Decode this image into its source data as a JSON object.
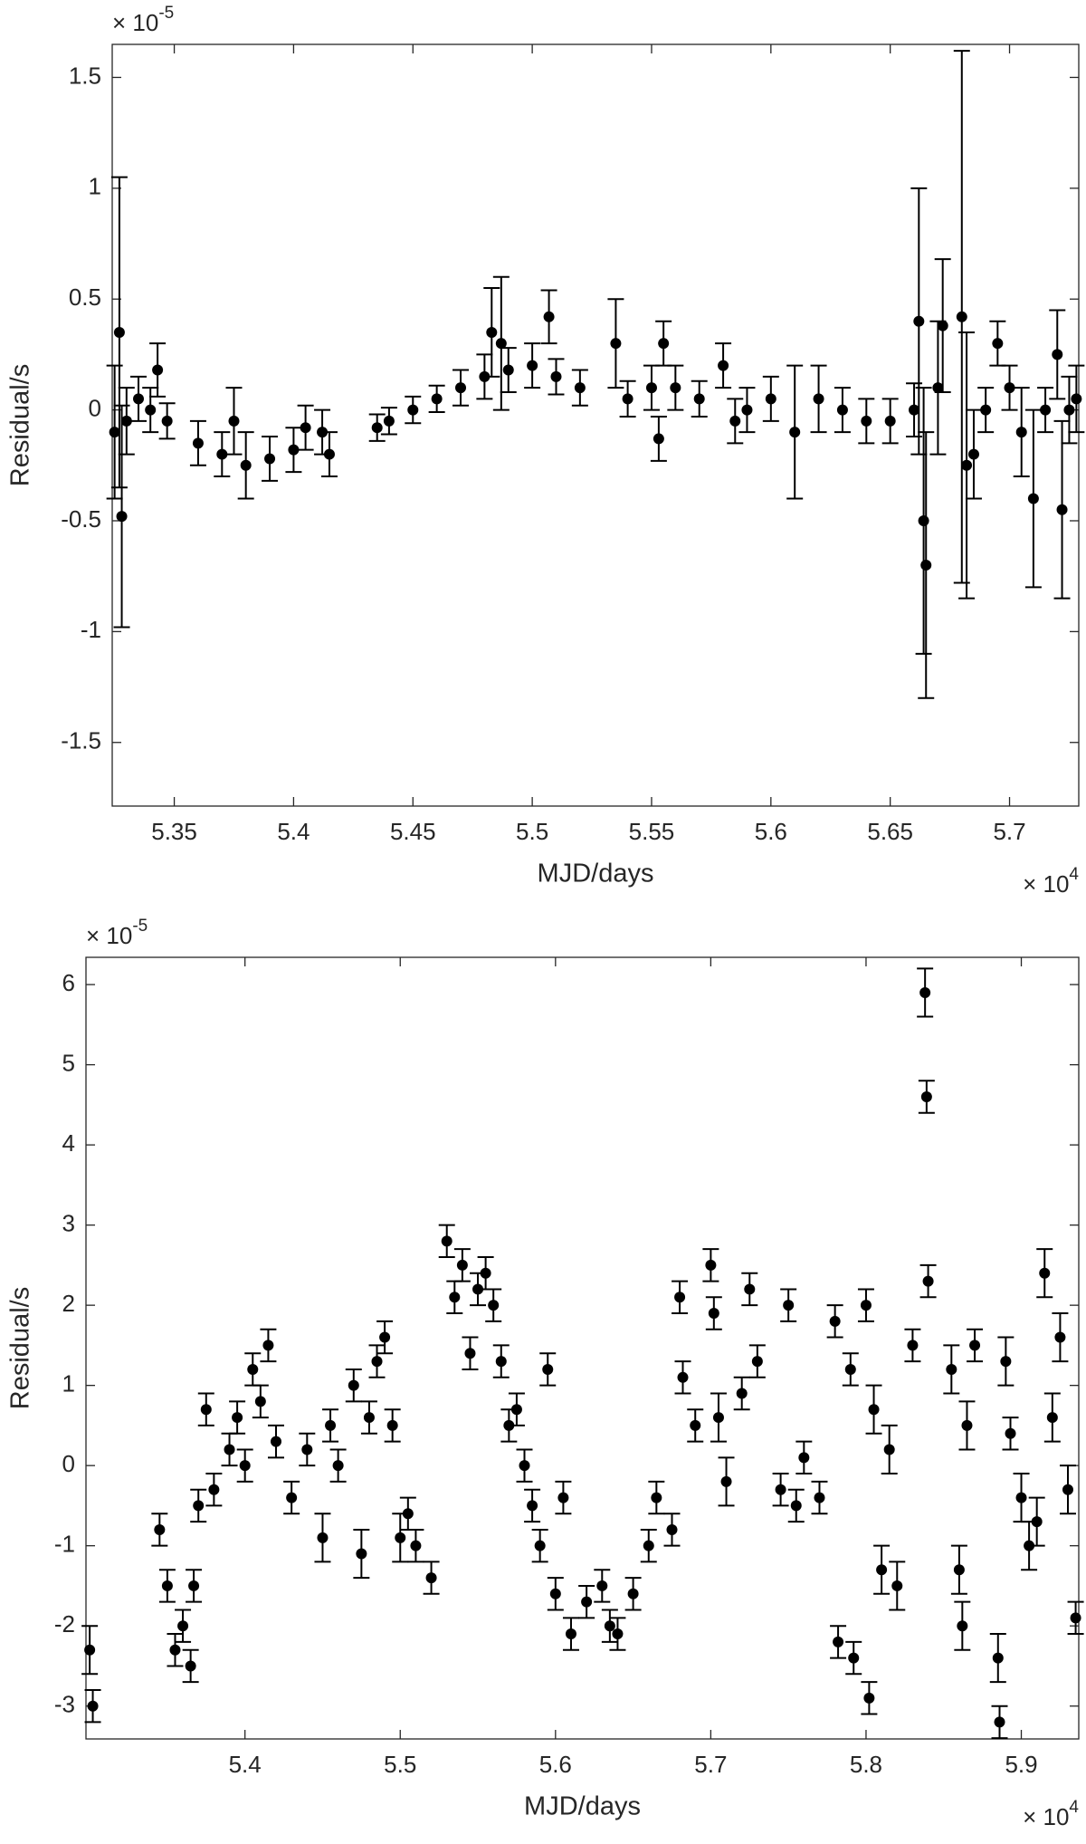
{
  "chart_data": [
    {
      "type": "scatter",
      "x_label": "MJD/days",
      "y_label": "Residual/s",
      "x_multiplier": "× 10",
      "x_exponent": "4",
      "y_multiplier": "× 10",
      "y_exponent": "-5",
      "xlim": [
        5.324,
        5.729
      ],
      "ylim": [
        -1.787,
        1.649
      ],
      "xticks": [
        5.35,
        5.4,
        5.45,
        5.5,
        5.55,
        5.6,
        5.65,
        5.7
      ],
      "yticks": [
        -1.5,
        -1,
        -0.5,
        0,
        0.5,
        1,
        1.5
      ],
      "series": [
        {
          "color": "#000000",
          "x": [
            5.325,
            5.327,
            5.328,
            5.33,
            5.335,
            5.34,
            5.343,
            5.347,
            5.36,
            5.37,
            5.375,
            5.38,
            5.39,
            5.4,
            5.405,
            5.412,
            5.415,
            5.435,
            5.44,
            5.45,
            5.46,
            5.47,
            5.48,
            5.483,
            5.487,
            5.49,
            5.5,
            5.507,
            5.51,
            5.52,
            5.535,
            5.54,
            5.55,
            5.553,
            5.555,
            5.56,
            5.57,
            5.58,
            5.585,
            5.59,
            5.6,
            5.61,
            5.62,
            5.63,
            5.64,
            5.65,
            5.66,
            5.662,
            5.664,
            5.665,
            5.67,
            5.672,
            5.68,
            5.682,
            5.685,
            5.69,
            5.695,
            5.7,
            5.705,
            5.71,
            5.715,
            5.72,
            5.722,
            5.725,
            5.728
          ],
          "values": [
            -0.1,
            0.35,
            -0.48,
            -0.05,
            0.05,
            0,
            0.18,
            -0.05,
            -0.15,
            -0.2,
            -0.05,
            -0.25,
            -0.22,
            -0.18,
            -0.08,
            -0.1,
            -0.2,
            -0.08,
            -0.05,
            0,
            0.05,
            0.1,
            0.15,
            0.35,
            0.3,
            0.18,
            0.2,
            0.42,
            0.15,
            0.1,
            0.3,
            0.05,
            0.1,
            -0.13,
            0.3,
            0.1,
            0.05,
            0.2,
            -0.05,
            0,
            0.05,
            -0.1,
            0.05,
            0,
            -0.05,
            -0.05,
            0,
            0.4,
            -0.5,
            -0.7,
            0.1,
            0.38,
            0.42,
            -0.25,
            -0.2,
            0,
            0.3,
            0.1,
            -0.1,
            -0.4,
            0,
            0.25,
            -0.45,
            0,
            0.05
          ],
          "errors": [
            0.3,
            0.7,
            0.5,
            0.15,
            0.1,
            0.1,
            0.12,
            0.08,
            0.1,
            0.1,
            0.15,
            0.15,
            0.1,
            0.1,
            0.1,
            0.1,
            0.1,
            0.06,
            0.06,
            0.06,
            0.06,
            0.08,
            0.1,
            0.2,
            0.3,
            0.1,
            0.1,
            0.12,
            0.08,
            0.08,
            0.2,
            0.08,
            0.1,
            0.1,
            0.1,
            0.1,
            0.08,
            0.1,
            0.1,
            0.1,
            0.1,
            0.3,
            0.15,
            0.1,
            0.1,
            0.1,
            0.12,
            0.6,
            0.6,
            0.6,
            0.3,
            0.3,
            1.2,
            0.6,
            0.2,
            0.1,
            0.1,
            0.1,
            0.2,
            0.4,
            0.1,
            0.2,
            0.4,
            0.15,
            0.15
          ]
        }
      ]
    },
    {
      "type": "scatter",
      "x_label": "MJD/days",
      "y_label": "Residual/s",
      "x_multiplier": "× 10",
      "x_exponent": "4",
      "y_multiplier": "× 10",
      "y_exponent": "-5",
      "xlim": [
        5.2976,
        5.937
      ],
      "ylim": [
        -3.41,
        6.34
      ],
      "xticks": [
        5.4,
        5.5,
        5.6,
        5.7,
        5.8,
        5.9
      ],
      "yticks": [
        -3,
        -2,
        -1,
        0,
        1,
        2,
        3,
        4,
        5,
        6
      ],
      "series": [
        {
          "color": "#000000",
          "x": [
            5.3,
            5.302,
            5.345,
            5.35,
            5.355,
            5.36,
            5.365,
            5.367,
            5.37,
            5.375,
            5.38,
            5.39,
            5.395,
            5.4,
            5.405,
            5.41,
            5.415,
            5.42,
            5.43,
            5.44,
            5.45,
            5.455,
            5.46,
            5.47,
            5.475,
            5.48,
            5.485,
            5.49,
            5.495,
            5.5,
            5.505,
            5.51,
            5.52,
            5.53,
            5.535,
            5.54,
            5.545,
            5.55,
            5.555,
            5.56,
            5.565,
            5.57,
            5.575,
            5.58,
            5.585,
            5.59,
            5.595,
            5.6,
            5.605,
            5.61,
            5.62,
            5.63,
            5.635,
            5.64,
            5.65,
            5.66,
            5.665,
            5.675,
            5.68,
            5.682,
            5.69,
            5.7,
            5.702,
            5.705,
            5.71,
            5.72,
            5.725,
            5.73,
            5.745,
            5.75,
            5.755,
            5.76,
            5.77,
            5.78,
            5.782,
            5.79,
            5.792,
            5.8,
            5.802,
            5.805,
            5.81,
            5.815,
            5.82,
            5.83,
            5.838,
            5.839,
            5.84,
            5.855,
            5.86,
            5.862,
            5.865,
            5.87,
            5.885,
            5.886,
            5.89,
            5.893,
            5.9,
            5.905,
            5.91,
            5.915,
            5.92,
            5.925,
            5.93,
            5.935
          ],
          "values": [
            -2.3,
            -3,
            -0.8,
            -1.5,
            -2.3,
            -2,
            -2.5,
            -1.5,
            -0.5,
            0.7,
            -0.3,
            0.2,
            0.6,
            0,
            1.2,
            0.8,
            1.5,
            0.3,
            -0.4,
            0.2,
            -0.9,
            0.5,
            0,
            1,
            -1.1,
            0.6,
            1.3,
            1.6,
            0.5,
            -0.9,
            -0.6,
            -1,
            -1.4,
            2.8,
            2.1,
            2.5,
            1.4,
            2.2,
            2.4,
            2,
            1.3,
            0.5,
            0.7,
            0,
            -0.5,
            -1,
            1.2,
            -1.6,
            -0.4,
            -2.1,
            -1.7,
            -1.5,
            -2,
            -2.1,
            -1.6,
            -1,
            -0.4,
            -0.8,
            2.1,
            1.1,
            0.5,
            2.5,
            1.9,
            0.6,
            -0.2,
            0.9,
            2.2,
            1.3,
            -0.3,
            2,
            -0.5,
            0.1,
            -0.4,
            1.8,
            -2.2,
            1.2,
            -2.4,
            2,
            -2.9,
            0.7,
            -1.3,
            0.2,
            -1.5,
            1.5,
            5.9,
            4.6,
            2.3,
            1.2,
            -1.3,
            -2,
            0.5,
            1.5,
            -2.4,
            -3.2,
            1.3,
            0.4,
            -0.4,
            -1,
            -0.7,
            2.4,
            0.6,
            1.6,
            -0.3,
            -1.9
          ],
          "errors": [
            0.3,
            0.2,
            0.2,
            0.2,
            0.2,
            0.2,
            0.2,
            0.2,
            0.2,
            0.2,
            0.2,
            0.2,
            0.2,
            0.2,
            0.2,
            0.2,
            0.2,
            0.2,
            0.2,
            0.2,
            0.3,
            0.2,
            0.2,
            0.2,
            0.3,
            0.2,
            0.2,
            0.2,
            0.2,
            0.3,
            0.2,
            0.2,
            0.2,
            0.2,
            0.2,
            0.2,
            0.2,
            0.2,
            0.2,
            0.2,
            0.2,
            0.2,
            0.2,
            0.2,
            0.2,
            0.2,
            0.2,
            0.2,
            0.2,
            0.2,
            0.2,
            0.2,
            0.2,
            0.2,
            0.2,
            0.2,
            0.2,
            0.2,
            0.2,
            0.2,
            0.2,
            0.2,
            0.2,
            0.3,
            0.3,
            0.2,
            0.2,
            0.2,
            0.2,
            0.2,
            0.2,
            0.2,
            0.2,
            0.2,
            0.2,
            0.2,
            0.2,
            0.2,
            0.2,
            0.3,
            0.3,
            0.3,
            0.3,
            0.2,
            0.3,
            0.2,
            0.2,
            0.3,
            0.3,
            0.3,
            0.3,
            0.2,
            0.3,
            0.2,
            0.3,
            0.2,
            0.3,
            0.3,
            0.3,
            0.3,
            0.3,
            0.3,
            0.3,
            0.2
          ]
        }
      ]
    }
  ]
}
